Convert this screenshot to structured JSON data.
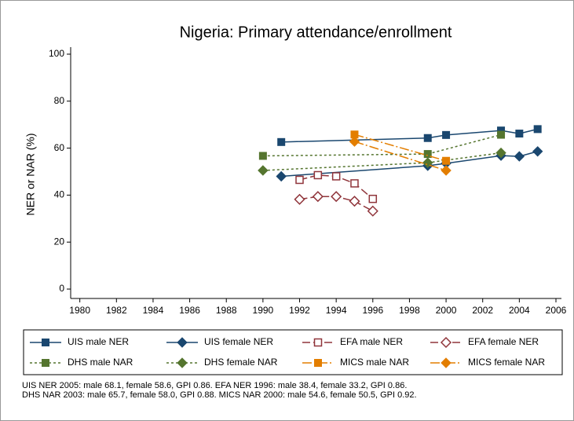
{
  "chart_data": {
    "type": "line",
    "title": "Nigeria: Primary attendance/enrollment",
    "ylabel": "NER or NAR (%)",
    "xlim": [
      1979.5,
      2006.3
    ],
    "ylim": [
      -4,
      103
    ],
    "xticks": [
      1980,
      1982,
      1984,
      1986,
      1988,
      1990,
      1992,
      1994,
      1996,
      1998,
      2000,
      2002,
      2004,
      2006
    ],
    "yticks": [
      0,
      20,
      40,
      60,
      80,
      100
    ],
    "grid": false,
    "series": [
      {
        "name": "UIS male NER",
        "color": "#1a476f",
        "marker": "square",
        "filled": true,
        "dash": "",
        "x": [
          1991,
          1999,
          2000,
          2003,
          2004,
          2005
        ],
        "values": [
          62.6,
          64.3,
          65.6,
          67.5,
          66.2,
          68.1
        ]
      },
      {
        "name": "UIS female NER",
        "color": "#1a476f",
        "marker": "diamond",
        "filled": true,
        "dash": "",
        "x": [
          1991,
          1999,
          2000,
          2003,
          2004,
          2005
        ],
        "values": [
          48.0,
          52.5,
          53.5,
          56.8,
          56.5,
          58.6
        ]
      },
      {
        "name": "EFA male NER",
        "color": "#90353b",
        "marker": "square",
        "filled": false,
        "dash": "10 4",
        "x": [
          1992,
          1993,
          1994,
          1995,
          1996
        ],
        "values": [
          46.5,
          48.5,
          48.0,
          45.0,
          38.4
        ]
      },
      {
        "name": "EFA female NER",
        "color": "#90353b",
        "marker": "diamond",
        "filled": false,
        "dash": "10 4",
        "x": [
          1992,
          1993,
          1994,
          1995,
          1996
        ],
        "values": [
          38.2,
          39.4,
          39.4,
          37.4,
          33.2
        ]
      },
      {
        "name": "DHS male NAR",
        "color": "#55752f",
        "marker": "square",
        "filled": true,
        "dash": "3 3",
        "x": [
          1990,
          1999,
          2003
        ],
        "values": [
          56.7,
          57.5,
          65.7
        ]
      },
      {
        "name": "DHS female NAR",
        "color": "#55752f",
        "marker": "diamond",
        "filled": true,
        "dash": "3 3",
        "x": [
          1990,
          1999,
          2003
        ],
        "values": [
          50.5,
          53.8,
          58.0
        ]
      },
      {
        "name": "MICS male NAR",
        "color": "#e37e00",
        "marker": "square",
        "filled": true,
        "dash": "12 3 2 3",
        "x": [
          1995,
          2000
        ],
        "values": [
          65.8,
          54.6
        ]
      },
      {
        "name": "MICS female NAR",
        "color": "#e37e00",
        "marker": "diamond",
        "filled": true,
        "dash": "12 3 2 3",
        "x": [
          1995,
          2000
        ],
        "values": [
          62.8,
          50.5
        ]
      }
    ],
    "notes": [
      "UIS NER 2005: male 68.1, female 58.6, GPI 0.86. EFA NER 1996: male 38.4, female 33.2, GPI 0.86.",
      "DHS NAR 2003: male 65.7, female 58.0, GPI 0.88. MICS NAR 2000: male 54.6, female 50.5, GPI 0.92."
    ]
  }
}
